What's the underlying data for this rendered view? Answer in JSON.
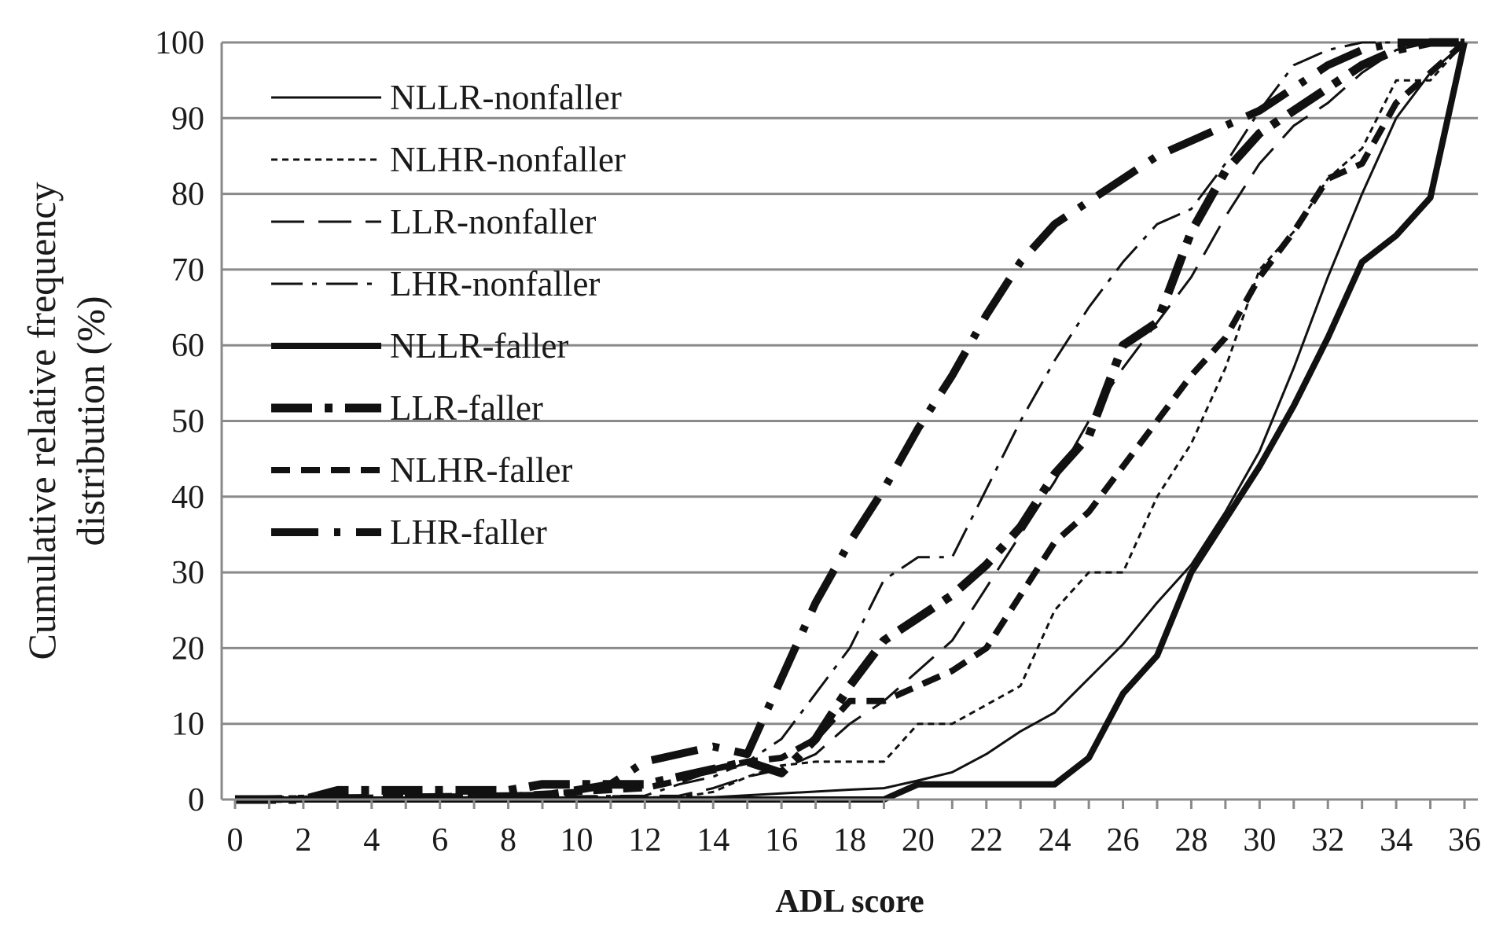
{
  "chart_data": {
    "type": "line",
    "xlabel": "ADL score",
    "ylabel_lines": [
      "Cumulative relative frequency",
      "distribution (%)"
    ],
    "xlim": [
      0,
      36
    ],
    "ylim": [
      0,
      100
    ],
    "x_ticks": [
      "0",
      "2",
      "4",
      "6",
      "8",
      "10",
      "12",
      "14",
      "16",
      "18",
      "20",
      "22",
      "24",
      "26",
      "28",
      "30",
      "32",
      "34",
      "36"
    ],
    "y_ticks": [
      "0",
      "10",
      "20",
      "30",
      "40",
      "50",
      "60",
      "70",
      "80",
      "90",
      "100"
    ],
    "grid": "horizontal",
    "legend_position": "top-left",
    "series": [
      {
        "name": "NLLR-nonfaller",
        "style": "thin-solid",
        "color": "#111111",
        "points": [
          [
            0,
            0
          ],
          [
            14,
            0.3
          ],
          [
            16,
            0.8
          ],
          [
            18,
            1.3
          ],
          [
            19,
            1.5
          ],
          [
            20,
            2.5
          ],
          [
            21,
            3.6
          ],
          [
            22,
            6
          ],
          [
            23,
            9
          ],
          [
            24,
            11.5
          ],
          [
            25,
            16
          ],
          [
            26,
            20.5
          ],
          [
            27,
            26
          ],
          [
            28,
            31
          ],
          [
            29,
            38
          ],
          [
            30,
            46
          ],
          [
            31,
            57
          ],
          [
            32,
            69
          ],
          [
            33,
            80
          ],
          [
            34,
            90
          ],
          [
            35,
            96
          ],
          [
            36,
            100
          ]
        ]
      },
      {
        "name": "NLHR-nonfaller",
        "style": "thin-dotted",
        "color": "#111111",
        "points": [
          [
            0,
            0
          ],
          [
            13,
            0.3
          ],
          [
            14,
            1
          ],
          [
            15,
            3
          ],
          [
            16,
            4.5
          ],
          [
            17,
            5
          ],
          [
            18,
            5
          ],
          [
            19,
            5
          ],
          [
            20,
            10
          ],
          [
            21,
            10
          ],
          [
            22,
            12.5
          ],
          [
            23,
            15
          ],
          [
            24,
            25
          ],
          [
            25,
            30
          ],
          [
            26,
            30
          ],
          [
            27,
            40
          ],
          [
            28,
            47
          ],
          [
            29,
            57
          ],
          [
            30,
            70
          ],
          [
            31,
            75
          ],
          [
            32,
            82
          ],
          [
            33,
            86
          ],
          [
            34,
            95
          ],
          [
            35,
            95
          ],
          [
            36,
            100
          ]
        ]
      },
      {
        "name": "LLR-nonfaller",
        "style": "thin-dash",
        "color": "#111111",
        "points": [
          [
            0,
            0
          ],
          [
            13,
            0.5
          ],
          [
            14,
            1.5
          ],
          [
            15,
            3
          ],
          [
            16,
            4
          ],
          [
            17,
            6
          ],
          [
            18,
            10
          ],
          [
            19,
            13
          ],
          [
            20,
            17
          ],
          [
            21,
            21
          ],
          [
            22,
            28
          ],
          [
            23,
            35
          ],
          [
            24,
            42
          ],
          [
            25,
            50
          ],
          [
            26,
            57
          ],
          [
            27,
            63
          ],
          [
            28,
            69
          ],
          [
            29,
            77
          ],
          [
            30,
            84
          ],
          [
            31,
            89
          ],
          [
            32,
            92
          ],
          [
            33,
            96
          ],
          [
            34,
            99
          ],
          [
            35,
            100
          ],
          [
            36,
            100
          ]
        ]
      },
      {
        "name": "LHR-nonfaller",
        "style": "thin-dashdot",
        "color": "#111111",
        "points": [
          [
            0,
            0
          ],
          [
            12,
            0.5
          ],
          [
            13,
            2
          ],
          [
            14,
            3
          ],
          [
            15,
            5
          ],
          [
            16,
            8
          ],
          [
            17,
            14
          ],
          [
            18,
            20
          ],
          [
            19,
            29
          ],
          [
            20,
            32
          ],
          [
            21,
            32
          ],
          [
            22,
            41
          ],
          [
            23,
            50
          ],
          [
            24,
            58
          ],
          [
            25,
            65
          ],
          [
            26,
            71
          ],
          [
            27,
            76
          ],
          [
            28,
            78
          ],
          [
            29,
            84
          ],
          [
            30,
            91
          ],
          [
            31,
            97
          ],
          [
            32,
            99
          ],
          [
            33,
            100
          ],
          [
            36,
            100
          ]
        ]
      },
      {
        "name": "NLLR-faller",
        "style": "thick-solid",
        "color": "#111111",
        "points": [
          [
            0,
            0
          ],
          [
            19,
            0
          ],
          [
            20,
            2
          ],
          [
            21,
            2
          ],
          [
            22,
            2
          ],
          [
            23,
            2
          ],
          [
            24,
            2
          ],
          [
            25,
            5.5
          ],
          [
            26,
            14
          ],
          [
            27,
            19
          ],
          [
            28,
            30
          ],
          [
            29,
            37
          ],
          [
            30,
            44
          ],
          [
            31,
            52
          ],
          [
            32,
            61
          ],
          [
            33,
            71
          ],
          [
            34,
            74.5
          ],
          [
            35,
            79.5
          ],
          [
            36,
            100
          ]
        ]
      },
      {
        "name": "LLR-faller",
        "style": "thick-longdash-dot",
        "color": "#111111",
        "points": [
          [
            0,
            0
          ],
          [
            2,
            0
          ],
          [
            3,
            1.2
          ],
          [
            8,
            1.2
          ],
          [
            9,
            2
          ],
          [
            12,
            2
          ],
          [
            13,
            3
          ],
          [
            14,
            4
          ],
          [
            15,
            5
          ],
          [
            16,
            3.5
          ],
          [
            17,
            8
          ],
          [
            18,
            15
          ],
          [
            19,
            21
          ],
          [
            20,
            24
          ],
          [
            21,
            27
          ],
          [
            22,
            31
          ],
          [
            23,
            36
          ],
          [
            24,
            43
          ],
          [
            25,
            48
          ],
          [
            26,
            60
          ],
          [
            27,
            63
          ],
          [
            28,
            75
          ],
          [
            29,
            83
          ],
          [
            30,
            88
          ],
          [
            31,
            91
          ],
          [
            32,
            94
          ],
          [
            33,
            97
          ],
          [
            34,
            99
          ],
          [
            35,
            100
          ],
          [
            36,
            100
          ]
        ]
      },
      {
        "name": "NLHR-faller",
        "style": "thick-dash",
        "color": "#111111",
        "points": [
          [
            0,
            0
          ],
          [
            8,
            0.5
          ],
          [
            10,
            1
          ],
          [
            12,
            1.5
          ],
          [
            13,
            2.5
          ],
          [
            14,
            4
          ],
          [
            15,
            5
          ],
          [
            16,
            5.5
          ],
          [
            17,
            8
          ],
          [
            18,
            13
          ],
          [
            19,
            13
          ],
          [
            20,
            15
          ],
          [
            21,
            17
          ],
          [
            22,
            20
          ],
          [
            23,
            27
          ],
          [
            24,
            34
          ],
          [
            25,
            38
          ],
          [
            26,
            44
          ],
          [
            27,
            50
          ],
          [
            28,
            56
          ],
          [
            29,
            61
          ],
          [
            30,
            69
          ],
          [
            31,
            75
          ],
          [
            32,
            82
          ],
          [
            33,
            84
          ],
          [
            34,
            92
          ],
          [
            35,
            96
          ],
          [
            36,
            100
          ]
        ]
      },
      {
        "name": "LHR-faller",
        "style": "thick-dash-dot",
        "color": "#111111",
        "points": [
          [
            0,
            0
          ],
          [
            9,
            0.5
          ],
          [
            11,
            2
          ],
          [
            12,
            5
          ],
          [
            13,
            6
          ],
          [
            14,
            7
          ],
          [
            15,
            6
          ],
          [
            16,
            16
          ],
          [
            17,
            26
          ],
          [
            18,
            34
          ],
          [
            19,
            41
          ],
          [
            20,
            49
          ],
          [
            21,
            56
          ],
          [
            22,
            64
          ],
          [
            23,
            71
          ],
          [
            24,
            76
          ],
          [
            25,
            79
          ],
          [
            26,
            82
          ],
          [
            27,
            85
          ],
          [
            28,
            87
          ],
          [
            29,
            89
          ],
          [
            30,
            91
          ],
          [
            31,
            94
          ],
          [
            32,
            97
          ],
          [
            33,
            99
          ],
          [
            34,
            100
          ],
          [
            35,
            100
          ],
          [
            36,
            100
          ]
        ]
      }
    ]
  }
}
